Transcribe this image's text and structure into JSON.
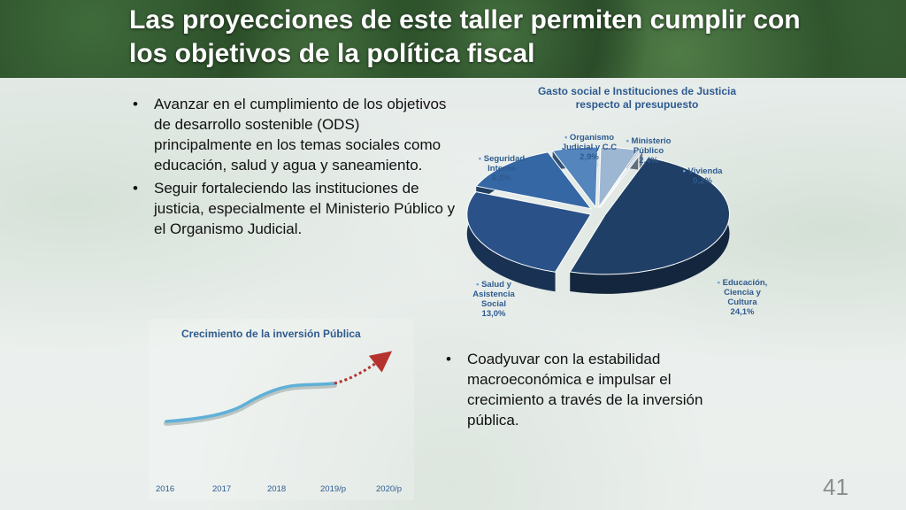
{
  "slide": {
    "title": "Las proyecciones de este taller permiten cumplir con los objetivos de la política fiscal",
    "page_number": "41"
  },
  "left_bullets": [
    "Avanzar en el cumplimiento de los objetivos de desarrollo sostenible (ODS) principalmente en los temas sociales como educación, salud y agua y saneamiento.",
    "Seguir fortaleciendo las instituciones de justicia, especialmente el Ministerio Público y el Organismo Judicial."
  ],
  "right_bullets": [
    "Coadyuvar con la estabilidad macroeconómica e impulsar el crecimiento a través de la inversión pública."
  ],
  "pie_chart": {
    "title": "Gasto social e Instituciones de Justicia respecto al presupuesto",
    "slices": [
      {
        "name": "Educación, Ciencia y Cultura",
        "value": "24,1%",
        "color": "#203f66"
      },
      {
        "name": "Salud y Asistencia Social",
        "value": "13,0%",
        "color": "#2a5288"
      },
      {
        "name": "Seguridad Interna",
        "value": "6,5%",
        "color": "#3567a4"
      },
      {
        "name": "Organismo Judicial y C.C",
        "value": "2,9%",
        "color": "#5485bd"
      },
      {
        "name": "Ministerio Público",
        "value": "2,4%",
        "color": "#9db7d2"
      },
      {
        "name": "Vivienda",
        "value": "0,2%",
        "color": "#c9d6e3"
      }
    ]
  },
  "line_chart": {
    "title": "Crecimiento de la inversión Pública",
    "years": [
      "2016",
      "2017",
      "2018",
      "2019/p",
      "2020/p"
    ]
  },
  "chart_data": [
    {
      "type": "pie",
      "title": "Gasto social e Instituciones de Justicia respecto al presupuesto",
      "categories": [
        "Educación, Ciencia y Cultura",
        "Salud y Asistencia Social",
        "Seguridad Interna",
        "Organismo Judicial y C.C",
        "Ministerio Público",
        "Vivienda"
      ],
      "values": [
        24.1,
        13.0,
        6.5,
        2.9,
        2.4,
        0.2
      ]
    },
    {
      "type": "line",
      "title": "Crecimiento de la inversión Pública",
      "x": [
        "2016",
        "2017",
        "2018",
        "2019/p",
        "2020/p"
      ]
    }
  ]
}
